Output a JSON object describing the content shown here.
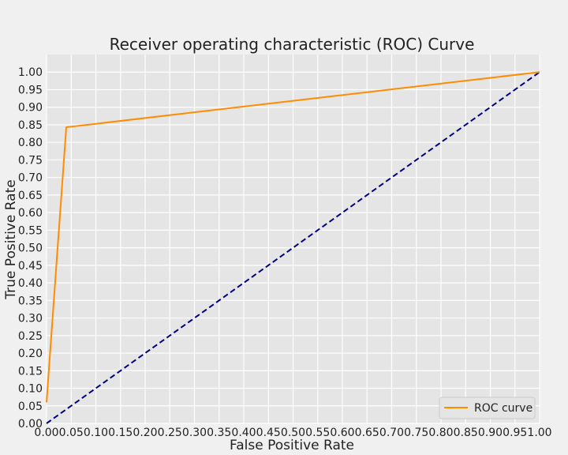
{
  "chart_data": {
    "type": "line",
    "title": "Receiver operating characteristic (ROC) Curve",
    "xlabel": "False Positive Rate",
    "ylabel": "True Positive Rate",
    "xlim": [
      0,
      1
    ],
    "ylim": [
      0,
      1.05
    ],
    "xticks": [
      "0.00",
      "0.05",
      "0.10",
      "0.15",
      "0.20",
      "0.25",
      "0.30",
      "0.35",
      "0.40",
      "0.45",
      "0.50",
      "0.55",
      "0.60",
      "0.65",
      "0.70",
      "0.75",
      "0.80",
      "0.85",
      "0.90",
      "0.95",
      "1.00"
    ],
    "yticks": [
      "0.00",
      "0.05",
      "0.10",
      "0.15",
      "0.20",
      "0.25",
      "0.30",
      "0.35",
      "0.40",
      "0.45",
      "0.50",
      "0.55",
      "0.60",
      "0.65",
      "0.70",
      "0.75",
      "0.80",
      "0.85",
      "0.90",
      "0.95",
      "1.00"
    ],
    "grid": true,
    "legend_position": "lower-right",
    "series": [
      {
        "name": "ROC curve",
        "color": "#ff8c00",
        "style": "solid",
        "x": [
          0.0,
          0.04,
          1.0
        ],
        "y": [
          0.06,
          0.843,
          1.0
        ]
      },
      {
        "color": "#000080",
        "style": "dashed",
        "x": [
          0.0,
          1.0
        ],
        "y": [
          0.0,
          1.0
        ]
      }
    ],
    "colors": {
      "plot_background": "#e5e5e5",
      "figure_background": "#f0f0f0",
      "grid": "#ffffff"
    }
  }
}
